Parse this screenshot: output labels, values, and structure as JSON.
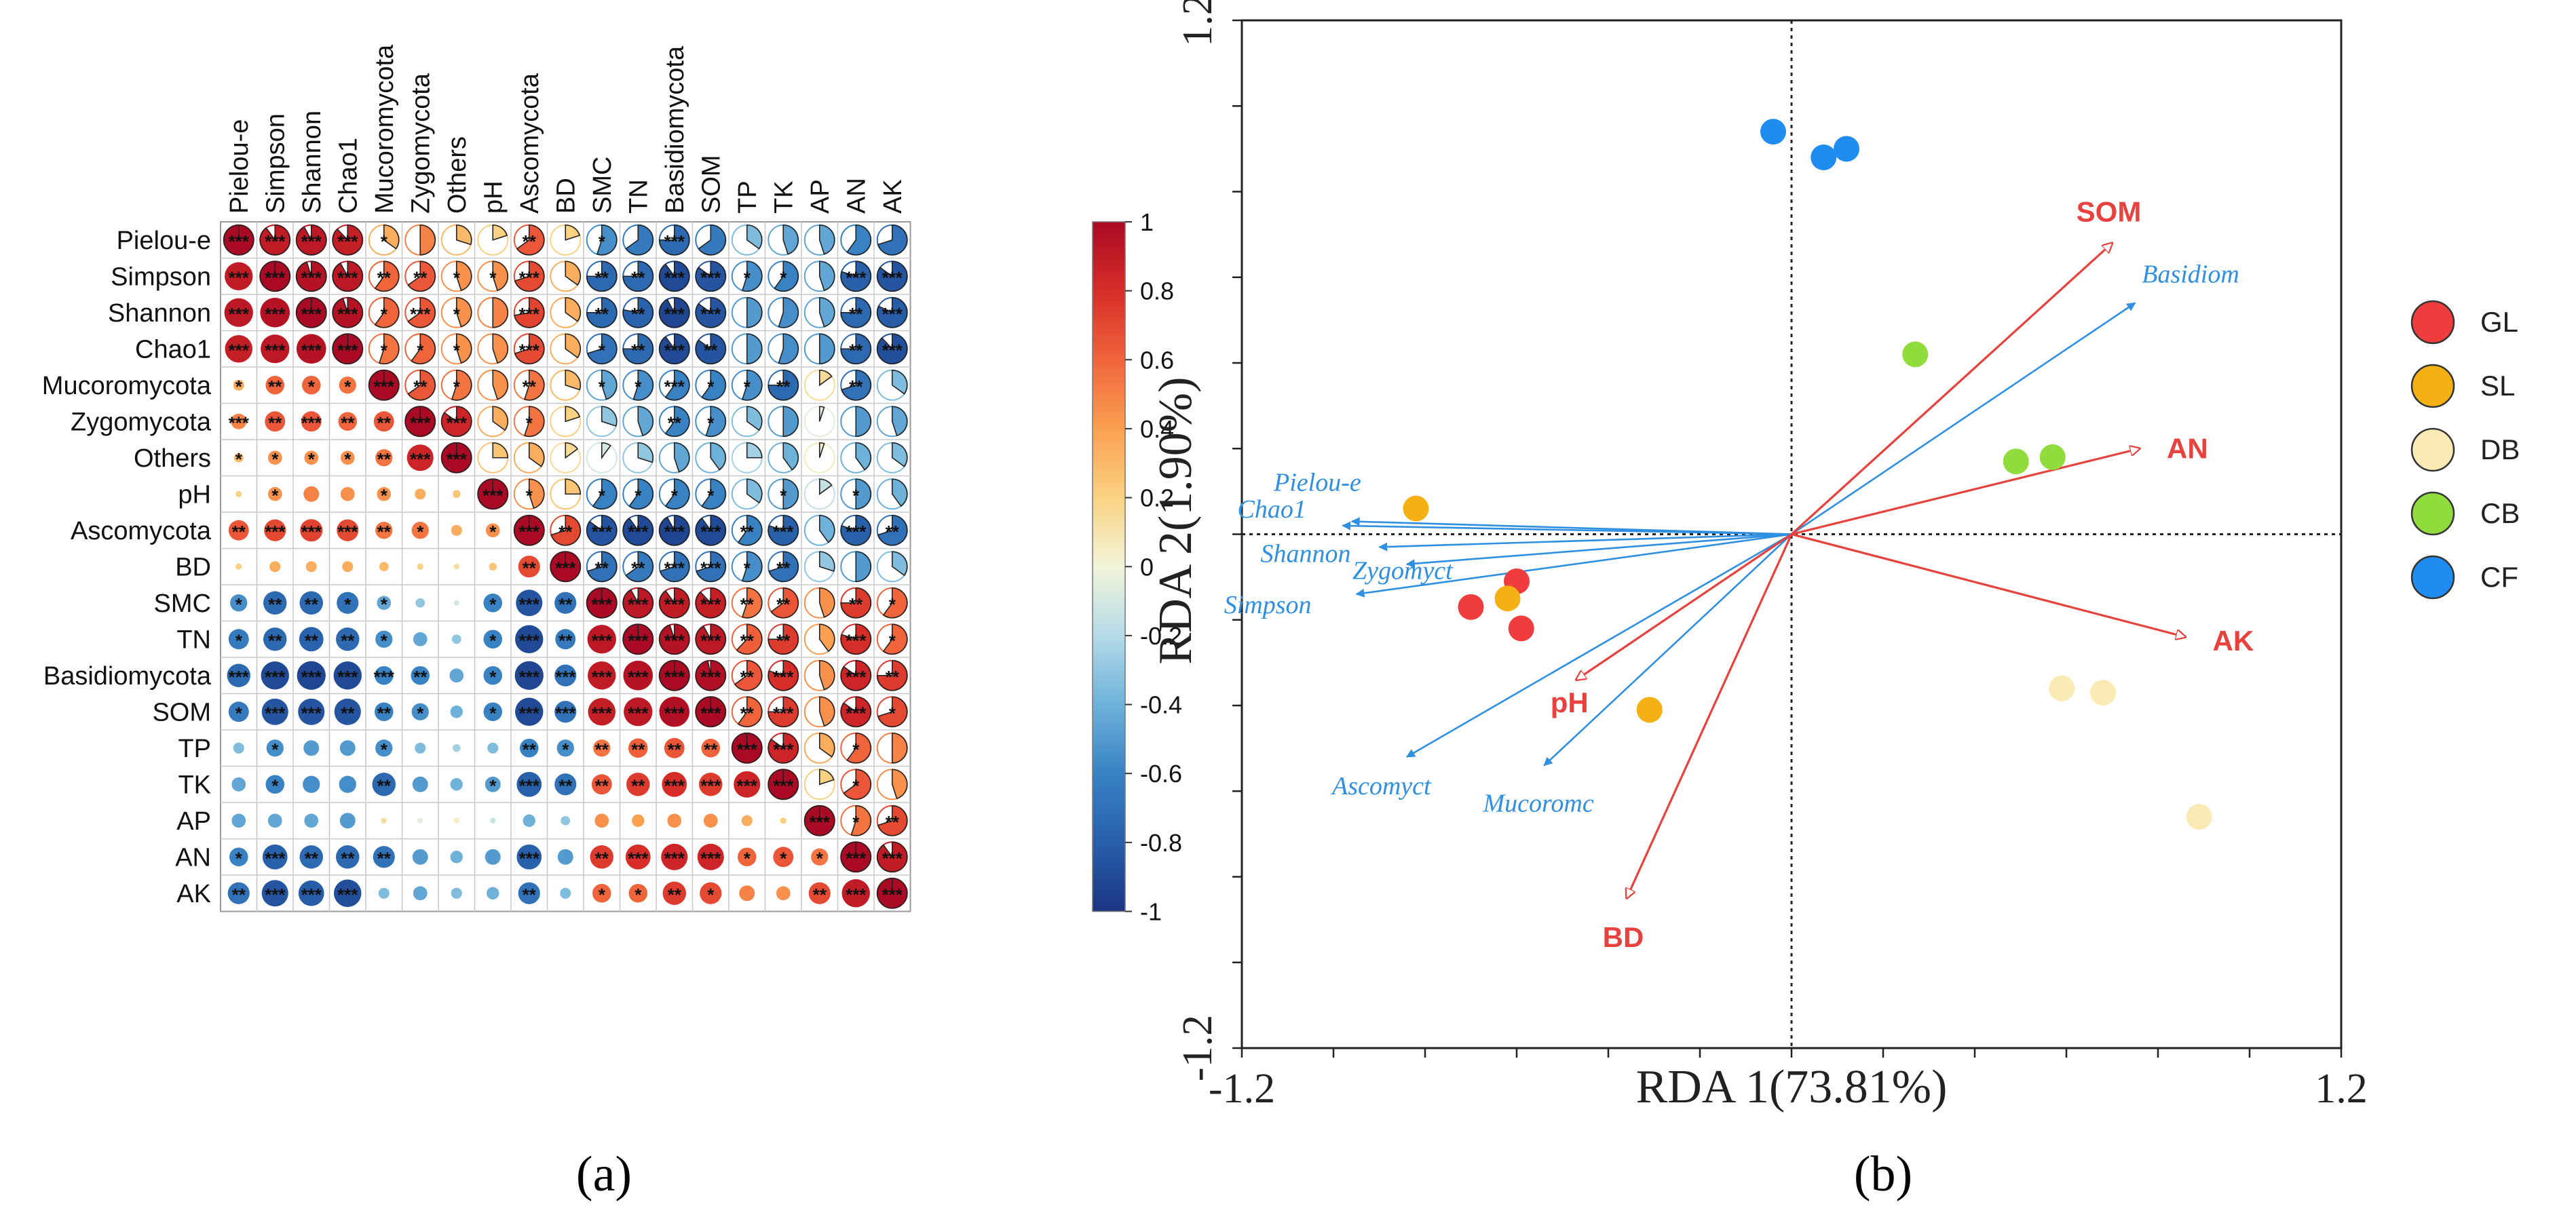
{
  "panels": {
    "a": {
      "caption": "(a)"
    },
    "b": {
      "caption": "(b)"
    }
  },
  "chart_data": [
    {
      "type": "heatmap",
      "title": "",
      "variables": [
        "Pielou-e",
        "Simpson",
        "Shannon",
        "Chao1",
        "Mucoromycota",
        "Zygomycota",
        "Others",
        "pH",
        "Ascomycota",
        "BD",
        "SMC",
        "TN",
        "Basidiomycota",
        "SOM",
        "TP",
        "TK",
        "AP",
        "AN",
        "AK"
      ],
      "upper": "pie",
      "lower": "circle",
      "colorbar": {
        "ticks": [
          1,
          0.8,
          0.6,
          0.4,
          0.2,
          0,
          -0.2,
          -0.4,
          -0.6,
          -0.8,
          -1
        ],
        "labels": [
          "1",
          "0.8",
          "0.6",
          "0.4",
          "0.2",
          "0",
          "-0.2",
          "-0.4",
          "-0.6",
          "-0.8",
          "-1"
        ],
        "range": [
          -1,
          1
        ]
      },
      "colors": {
        "neg": "#2166ac",
        "mid": "#f2f5d9",
        "pos": "#b2182b"
      },
      "matrix": [
        [
          1,
          0.9,
          0.92,
          0.88,
          0.35,
          0.5,
          0.3,
          0.2,
          0.65,
          0.2,
          -0.55,
          -0.65,
          -0.75,
          -0.65,
          -0.35,
          -0.45,
          -0.45,
          -0.6,
          -0.7
        ],
        [
          0.9,
          1,
          0.95,
          0.92,
          0.6,
          0.65,
          0.45,
          0.45,
          0.7,
          0.35,
          -0.75,
          -0.75,
          -0.9,
          -0.85,
          -0.55,
          -0.6,
          -0.45,
          -0.8,
          -0.85
        ],
        [
          0.92,
          0.95,
          1,
          0.95,
          0.6,
          0.65,
          0.45,
          0.5,
          0.72,
          0.35,
          -0.75,
          -0.78,
          -0.92,
          -0.85,
          -0.5,
          -0.55,
          -0.45,
          -0.75,
          -0.82
        ],
        [
          0.88,
          0.92,
          0.95,
          1,
          0.55,
          0.6,
          0.45,
          0.45,
          0.7,
          0.35,
          -0.7,
          -0.75,
          -0.9,
          -0.85,
          -0.5,
          -0.55,
          -0.5,
          -0.75,
          -0.88
        ],
        [
          0.35,
          0.6,
          0.6,
          0.55,
          1,
          0.65,
          0.55,
          0.45,
          0.55,
          0.3,
          -0.45,
          -0.55,
          -0.6,
          -0.6,
          -0.55,
          -0.75,
          0.15,
          -0.7,
          -0.35
        ],
        [
          0.5,
          0.65,
          0.65,
          0.6,
          0.65,
          1,
          0.85,
          0.35,
          0.55,
          0.2,
          -0.3,
          -0.45,
          -0.6,
          -0.55,
          -0.35,
          -0.5,
          -0.05,
          -0.5,
          -0.45
        ],
        [
          0.3,
          0.45,
          0.45,
          0.45,
          0.55,
          0.85,
          1,
          0.25,
          0.35,
          0.15,
          -0.1,
          -0.3,
          -0.45,
          -0.4,
          -0.25,
          -0.4,
          0.05,
          -0.4,
          -0.35
        ],
        [
          0.2,
          0.45,
          0.5,
          0.45,
          0.45,
          0.35,
          0.25,
          1,
          0.45,
          0.25,
          -0.6,
          -0.6,
          -0.6,
          -0.6,
          -0.35,
          -0.5,
          -0.15,
          -0.5,
          -0.4
        ],
        [
          0.65,
          0.7,
          0.72,
          0.7,
          0.55,
          0.55,
          0.35,
          0.45,
          1,
          0.7,
          -0.85,
          -0.9,
          -0.92,
          -0.9,
          -0.6,
          -0.8,
          -0.4,
          -0.8,
          -0.7
        ],
        [
          0.2,
          0.35,
          0.35,
          0.35,
          0.3,
          0.2,
          0.15,
          0.25,
          0.7,
          1,
          -0.7,
          -0.65,
          -0.7,
          -0.7,
          -0.55,
          -0.7,
          -0.3,
          -0.5,
          -0.35
        ],
        [
          -0.55,
          -0.75,
          -0.75,
          -0.7,
          -0.45,
          -0.3,
          -0.1,
          -0.6,
          -0.85,
          -0.7,
          1,
          0.92,
          0.9,
          0.88,
          0.55,
          0.65,
          0.45,
          0.75,
          0.6
        ],
        [
          -0.65,
          -0.75,
          -0.78,
          -0.75,
          -0.55,
          -0.45,
          -0.3,
          -0.6,
          -0.9,
          -0.65,
          0.92,
          1,
          0.95,
          0.92,
          0.62,
          0.75,
          0.4,
          0.8,
          0.6
        ],
        [
          -0.75,
          -0.9,
          -0.92,
          -0.9,
          -0.6,
          -0.6,
          -0.45,
          -0.6,
          -0.92,
          -0.7,
          0.9,
          0.95,
          1,
          0.97,
          0.65,
          0.8,
          0.45,
          0.85,
          0.75
        ],
        [
          -0.65,
          -0.85,
          -0.85,
          -0.85,
          -0.6,
          -0.55,
          -0.4,
          -0.6,
          -0.9,
          -0.7,
          0.88,
          0.92,
          0.97,
          1,
          0.6,
          0.75,
          0.45,
          0.85,
          0.7
        ],
        [
          -0.35,
          -0.55,
          -0.5,
          -0.5,
          -0.55,
          -0.35,
          -0.25,
          -0.35,
          -0.6,
          -0.55,
          0.55,
          0.62,
          0.65,
          0.6,
          1,
          0.85,
          0.35,
          0.6,
          0.5
        ],
        [
          -0.45,
          -0.6,
          -0.55,
          -0.55,
          -0.75,
          -0.5,
          -0.4,
          -0.5,
          -0.8,
          -0.7,
          0.65,
          0.75,
          0.8,
          0.75,
          0.85,
          1,
          0.2,
          0.65,
          0.45
        ],
        [
          -0.45,
          -0.45,
          -0.45,
          -0.5,
          0.15,
          -0.05,
          0.05,
          -0.15,
          -0.4,
          -0.3,
          0.45,
          0.4,
          0.45,
          0.45,
          0.35,
          0.2,
          1,
          0.55,
          0.7
        ],
        [
          -0.6,
          -0.8,
          -0.75,
          -0.75,
          -0.7,
          -0.5,
          -0.4,
          -0.5,
          -0.8,
          -0.5,
          0.75,
          0.8,
          0.85,
          0.85,
          0.6,
          0.65,
          0.55,
          1,
          0.9
        ],
        [
          -0.7,
          -0.85,
          -0.82,
          -0.88,
          -0.35,
          -0.45,
          -0.35,
          -0.4,
          -0.7,
          -0.35,
          0.6,
          0.6,
          0.75,
          0.7,
          0.5,
          0.45,
          0.7,
          0.9,
          1
        ]
      ],
      "significance": [
        [
          "***",
          "***",
          "***",
          "***",
          "*",
          "",
          "",
          "",
          "**",
          "",
          "*",
          "",
          "***",
          "",
          "",
          "",
          "",
          "",
          ""
        ],
        [
          "***",
          "***",
          "***",
          "***",
          "**",
          "**",
          "*",
          "*",
          "***",
          "",
          "**",
          "**",
          "***",
          "***",
          "*",
          "*",
          "",
          "***",
          "***"
        ],
        [
          "***",
          "***",
          "***",
          "***",
          "*",
          "***",
          "*",
          "",
          "***",
          "",
          "**",
          "**",
          "***",
          "***",
          "",
          "",
          "",
          "**",
          "***"
        ],
        [
          "***",
          "***",
          "***",
          "***",
          "*",
          "*",
          "*",
          "",
          "***",
          "",
          "*",
          "**",
          "***",
          "**",
          "",
          "",
          "",
          "**",
          "***"
        ],
        [
          "*",
          "**",
          "*",
          "*",
          "***",
          "**",
          "*",
          "",
          "**",
          "",
          "*",
          "*",
          "***",
          "*",
          "*",
          "**",
          "",
          "**",
          ""
        ],
        [
          "***",
          "**",
          "***",
          "**",
          "**",
          "***",
          "***",
          "",
          "*",
          "",
          "",
          "",
          "**",
          "*",
          "",
          "",
          "",
          "",
          ""
        ],
        [
          "*",
          "*",
          "*",
          "*",
          "**",
          "***",
          "***",
          "",
          "",
          "",
          "",
          "",
          "",
          "",
          "",
          "",
          "",
          "",
          ""
        ],
        [
          "",
          "*",
          "",
          "",
          "*",
          "",
          "",
          "***",
          "*",
          "",
          "*",
          "*",
          "*",
          "*",
          "",
          "*",
          "",
          "*",
          ""
        ],
        [
          "**",
          "***",
          "***",
          "***",
          "**",
          "*",
          "",
          "*",
          "***",
          "**",
          "***",
          "***",
          "***",
          "***",
          "**",
          "***",
          "",
          "***",
          "**"
        ],
        [
          "",
          "",
          "",
          "",
          "",
          "",
          "",
          "",
          "**",
          "***",
          "**",
          "**",
          "***",
          "***",
          "*",
          "**",
          "",
          "",
          ""
        ],
        [
          "*",
          "**",
          "**",
          "*",
          "*",
          "",
          "",
          "*",
          "***",
          "**",
          "***",
          "***",
          "***",
          "***",
          "**",
          "**",
          "",
          "**",
          "*"
        ],
        [
          "*",
          "**",
          "**",
          "**",
          "*",
          "",
          "",
          "*",
          "***",
          "**",
          "***",
          "***",
          "***",
          "***",
          "**",
          "**",
          "",
          "***",
          "*"
        ],
        [
          "***",
          "***",
          "***",
          "***",
          "***",
          "**",
          "",
          "*",
          "***",
          "***",
          "***",
          "***",
          "***",
          "***",
          "**",
          "***",
          "",
          "***",
          "**"
        ],
        [
          "*",
          "***",
          "***",
          "**",
          "**",
          "*",
          "",
          "*",
          "***",
          "***",
          "***",
          "***",
          "***",
          "***",
          "**",
          "***",
          "",
          "***",
          "*"
        ],
        [
          "",
          "*",
          "",
          "",
          "*",
          "",
          "",
          "",
          "**",
          "*",
          "**",
          "**",
          "**",
          "**",
          "***",
          "***",
          "",
          "*",
          ""
        ],
        [
          "",
          "*",
          "",
          "",
          "**",
          "",
          "",
          "*",
          "***",
          "**",
          "**",
          "**",
          "***",
          "***",
          "***",
          "***",
          "",
          "*",
          ""
        ],
        [
          "",
          "",
          "",
          "",
          "",
          "",
          "",
          "",
          "",
          "",
          "",
          "",
          "",
          "",
          "",
          "",
          "***",
          "*",
          "**"
        ],
        [
          "*",
          "***",
          "**",
          "**",
          "**",
          "",
          "",
          "",
          "***",
          "",
          "**",
          "***",
          "***",
          "***",
          "*",
          "*",
          "*",
          "***",
          "***"
        ],
        [
          "**",
          "***",
          "***",
          "***",
          "",
          "",
          "",
          "",
          "**",
          "",
          "*",
          "*",
          "**",
          "*",
          "",
          "",
          "**",
          "***",
          "***"
        ]
      ]
    },
    {
      "type": "scatter",
      "title": "",
      "xlabel": "RDA 1(73.81%)",
      "ylabel": "RDA 2(1.90%)",
      "xlim": [
        -1.2,
        1.2
      ],
      "ylim": [
        -1.2,
        1.2
      ],
      "xtick_labels": [
        "-1.2",
        "1.2"
      ],
      "ytick_labels": [
        "1.2",
        "-1.2"
      ],
      "legend": {
        "position": "right",
        "entries": [
          {
            "name": "GL",
            "color": "#f03c3c"
          },
          {
            "name": "SL",
            "color": "#f5b114"
          },
          {
            "name": "DB",
            "color": "#faebb4"
          },
          {
            "name": "CB",
            "color": "#8fdc3c"
          },
          {
            "name": "CF",
            "color": "#1e8cf0"
          }
        ]
      },
      "series": [
        {
          "name": "GL",
          "points": [
            [
              -0.7,
              -0.17
            ],
            [
              -0.6,
              -0.11
            ],
            [
              -0.59,
              -0.22
            ]
          ]
        },
        {
          "name": "SL",
          "points": [
            [
              -0.82,
              0.06
            ],
            [
              -0.62,
              -0.15
            ],
            [
              -0.31,
              -0.41
            ]
          ]
        },
        {
          "name": "DB",
          "points": [
            [
              0.59,
              -0.36
            ],
            [
              0.68,
              -0.37
            ],
            [
              0.89,
              -0.66
            ]
          ]
        },
        {
          "name": "CB",
          "points": [
            [
              0.27,
              0.42
            ],
            [
              0.49,
              0.17
            ],
            [
              0.57,
              0.18
            ]
          ]
        },
        {
          "name": "CF",
          "points": [
            [
              -0.04,
              0.94
            ],
            [
              0.07,
              0.88
            ],
            [
              0.12,
              0.9
            ]
          ]
        }
      ],
      "env_vectors": [
        {
          "name": "SOM",
          "x": 0.7,
          "y": 0.68
        },
        {
          "name": "AN",
          "x": 0.76,
          "y": 0.2
        },
        {
          "name": "AK",
          "x": 0.86,
          "y": -0.24
        },
        {
          "name": "pH",
          "x": -0.47,
          "y": -0.34
        },
        {
          "name": "BD",
          "x": -0.36,
          "y": -0.85
        }
      ],
      "species_vectors": [
        {
          "name": "Basidiom",
          "x": 0.75,
          "y": 0.54
        },
        {
          "name": "Pielou-e",
          "x": -0.96,
          "y": 0.03
        },
        {
          "name": "Chao1",
          "x": -0.98,
          "y": 0.02
        },
        {
          "name": "Shannon",
          "x": -0.9,
          "y": -0.03
        },
        {
          "name": "Zygomyct",
          "x": -0.84,
          "y": -0.07
        },
        {
          "name": "Simpson",
          "x": -0.95,
          "y": -0.14
        },
        {
          "name": "Ascomyct",
          "x": -0.84,
          "y": -0.52
        },
        {
          "name": "Mucoromc",
          "x": -0.54,
          "y": -0.54
        }
      ]
    }
  ]
}
